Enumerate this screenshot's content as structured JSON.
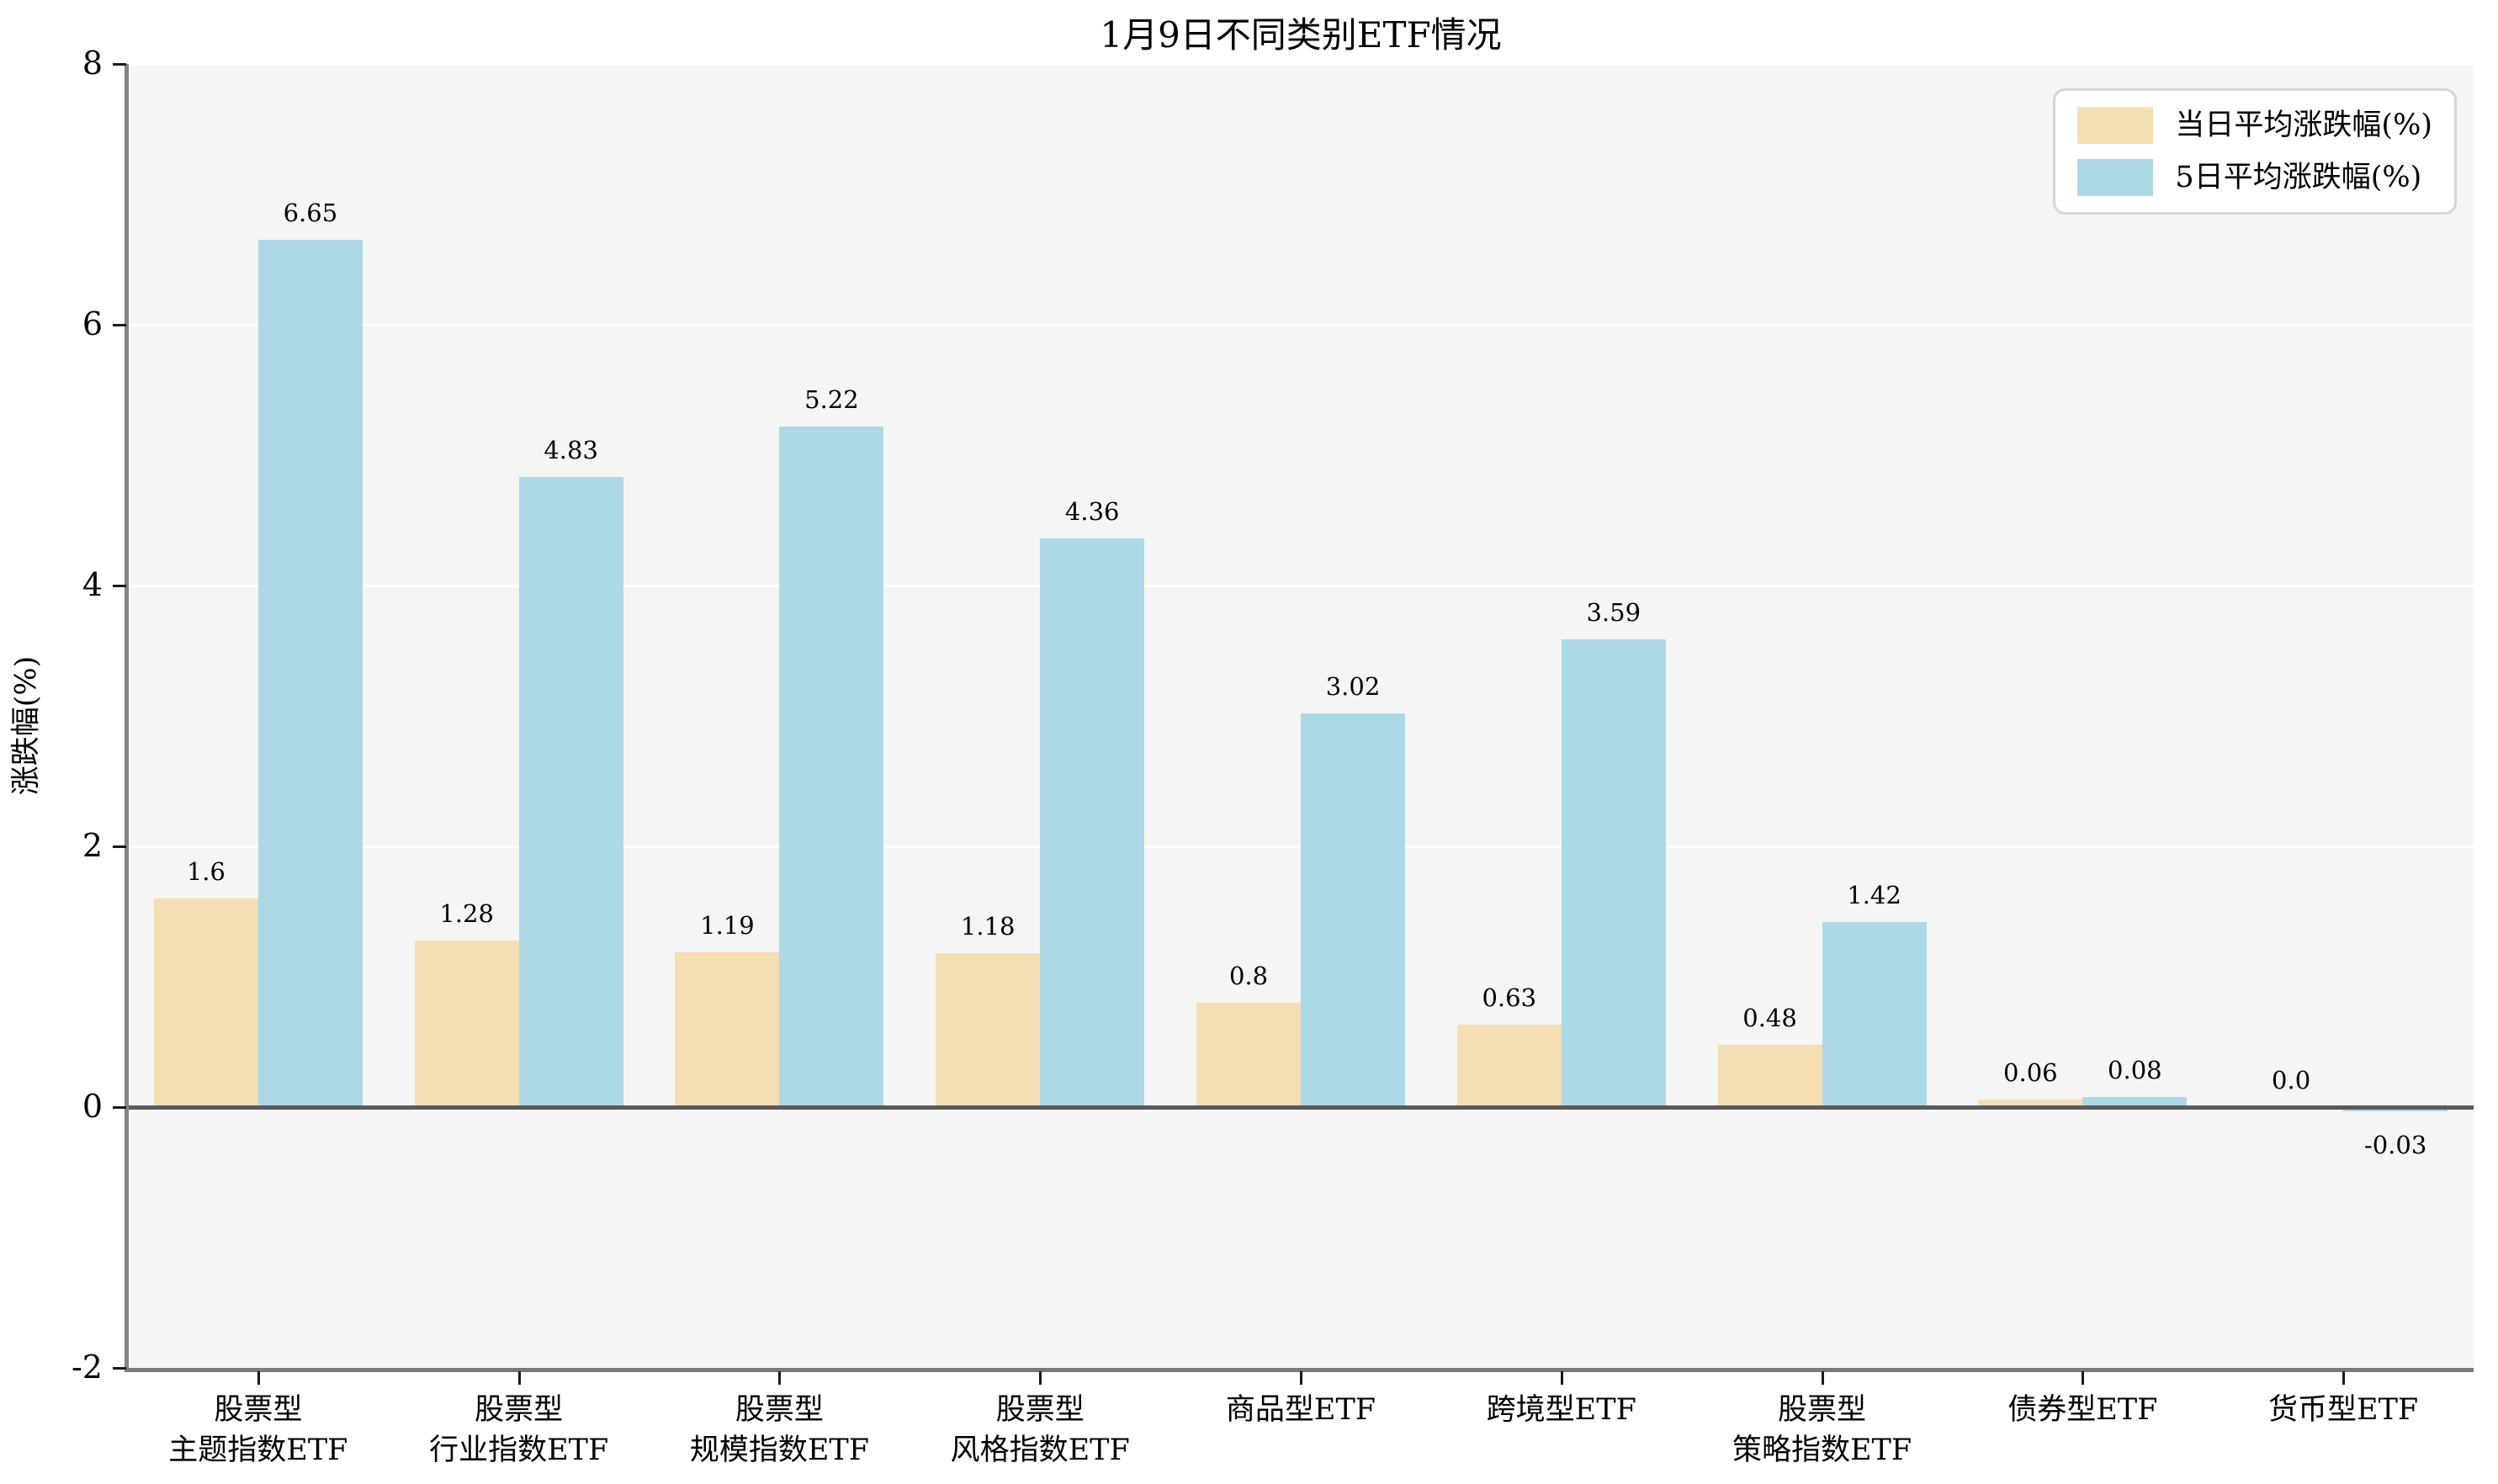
{
  "title": "1月9日不同类别ETF情况",
  "ylabel": "涨跌幅(%)",
  "colors": {
    "series_today": "#f5deb3",
    "series_5day": "#add8e6",
    "plot_background": "#f5f5f5",
    "figure_background": "#ffffff",
    "gridline": "#ffffff",
    "zero_line": "#5a5a5a",
    "spine": "#848484",
    "tick": "#1a1a1a",
    "legend_border": "#d5d5d5",
    "text": "#000000"
  },
  "chart_data": {
    "type": "bar",
    "title": "1月9日不同类别ETF情况",
    "xlabel": "",
    "ylabel": "涨跌幅(%)",
    "ylim": [
      -2,
      8
    ],
    "yticks": [
      -2,
      0,
      2,
      4,
      6,
      8
    ],
    "grid": true,
    "legend_position": "upper right",
    "categories": [
      "股票型\n主题指数ETF",
      "股票型\n行业指数ETF",
      "股票型\n规模指数ETF",
      "股票型\n风格指数ETF",
      "商品型ETF",
      "跨境型ETF",
      "股票型\n策略指数ETF",
      "债券型ETF",
      "货币型ETF"
    ],
    "series": [
      {
        "name": "当日平均涨跌幅(%)",
        "color": "#f5deb3",
        "values": [
          1.6,
          1.28,
          1.19,
          1.18,
          0.8,
          0.63,
          0.48,
          0.06,
          0.0
        ],
        "labels": [
          "1.6",
          "1.28",
          "1.19",
          "1.18",
          "0.8",
          "0.63",
          "0.48",
          "0.06",
          "0.0"
        ]
      },
      {
        "name": "5日平均涨跌幅(%)",
        "color": "#add8e6",
        "values": [
          6.65,
          4.83,
          5.22,
          4.36,
          3.02,
          3.59,
          1.42,
          0.08,
          -0.03
        ],
        "labels": [
          "6.65",
          "4.83",
          "5.22",
          "4.36",
          "3.02",
          "3.59",
          "1.42",
          "0.08",
          "-0.03"
        ]
      }
    ]
  }
}
